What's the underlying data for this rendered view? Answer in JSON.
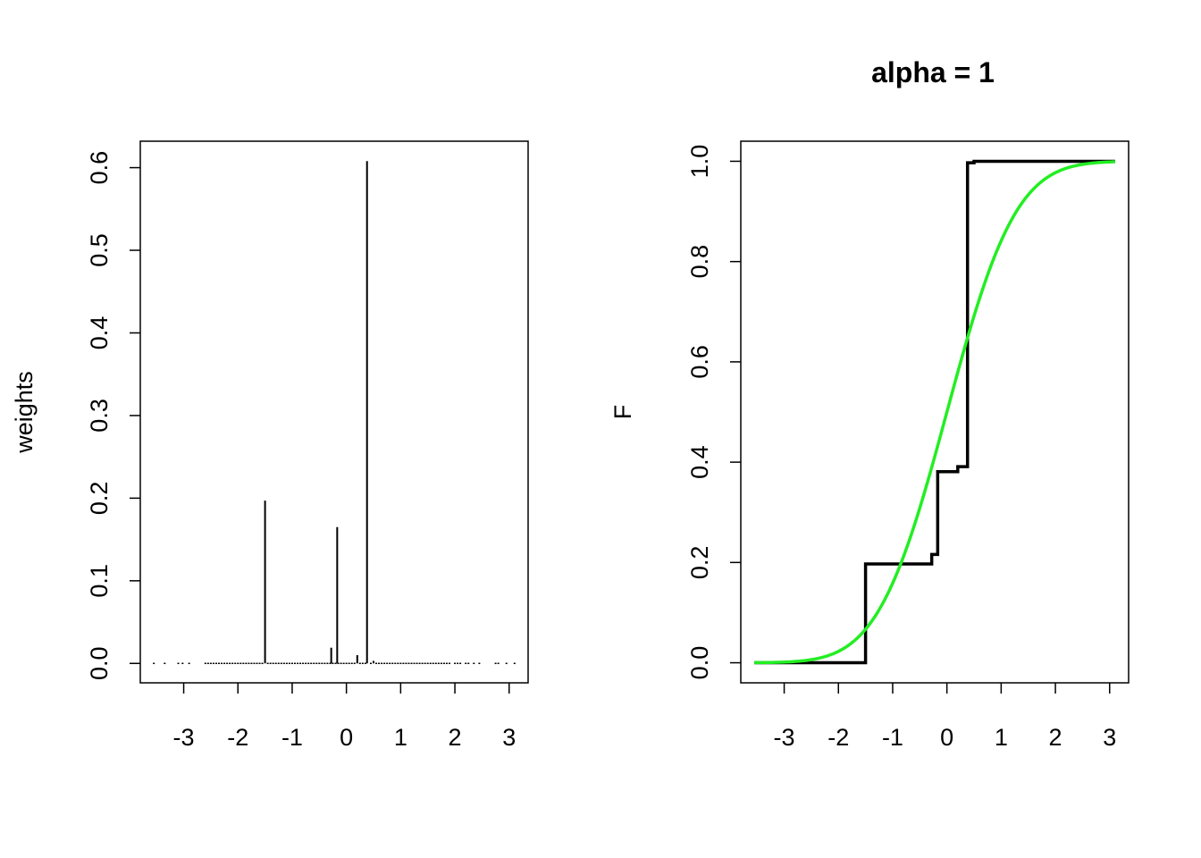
{
  "chart_data": [
    {
      "type": "bar",
      "title": "",
      "xlabel": "",
      "ylabel": "weights",
      "xlim": [
        -3.8,
        3.35
      ],
      "ylim": [
        -0.0235,
        0.632
      ],
      "xticks": [
        "-3",
        "-2",
        "-1",
        "0",
        "1",
        "2",
        "3"
      ],
      "yticks": [
        "0.0",
        "0.1",
        "0.2",
        "0.3",
        "0.4",
        "0.5",
        "0.6"
      ],
      "spikes": [
        {
          "x": -1.5,
          "y": 0.197
        },
        {
          "x": -0.28,
          "y": 0.019
        },
        {
          "x": -0.17,
          "y": 0.165
        },
        {
          "x": 0.2,
          "y": 0.01
        },
        {
          "x": 0.38,
          "y": 0.608
        },
        {
          "x": 0.5,
          "y": 0.003
        }
      ],
      "points_y": 0.0,
      "points_x": [
        -3.55,
        -3.35,
        -3.1,
        -3.02,
        -2.9,
        -2.6,
        -2.55,
        -2.5,
        -2.45,
        -2.4,
        -2.35,
        -2.3,
        -2.25,
        -2.2,
        -2.15,
        -2.1,
        -2.05,
        -2.0,
        -1.95,
        -1.9,
        -1.85,
        -1.8,
        -1.75,
        -1.7,
        -1.65,
        -1.6,
        -1.55,
        -1.45,
        -1.4,
        -1.35,
        -1.3,
        -1.25,
        -1.2,
        -1.15,
        -1.1,
        -1.05,
        -1.0,
        -0.95,
        -0.9,
        -0.85,
        -0.8,
        -0.75,
        -0.7,
        -0.65,
        -0.6,
        -0.55,
        -0.5,
        -0.45,
        -0.4,
        -0.35,
        -0.3,
        -0.25,
        -0.2,
        -0.15,
        -0.1,
        -0.05,
        0.0,
        0.05,
        0.1,
        0.15,
        0.25,
        0.3,
        0.35,
        0.45,
        0.55,
        0.6,
        0.65,
        0.7,
        0.75,
        0.8,
        0.85,
        0.9,
        0.95,
        1.0,
        1.05,
        1.1,
        1.15,
        1.2,
        1.25,
        1.3,
        1.35,
        1.4,
        1.45,
        1.5,
        1.55,
        1.6,
        1.65,
        1.7,
        1.75,
        1.8,
        1.85,
        1.9,
        2.0,
        2.05,
        2.1,
        2.2,
        2.25,
        2.35,
        2.45,
        2.75,
        2.8,
        2.95,
        3.1
      ]
    },
    {
      "type": "line",
      "title": "alpha = 1",
      "xlabel": "",
      "ylabel": "F",
      "xlim": [
        -3.8,
        3.35
      ],
      "ylim": [
        -0.04,
        1.04
      ],
      "xticks": [
        "-3",
        "-2",
        "-1",
        "0",
        "1",
        "2",
        "3"
      ],
      "yticks": [
        "0.0",
        "0.2",
        "0.4",
        "0.6",
        "0.8",
        "1.0"
      ],
      "series": [
        {
          "color": "#000000",
          "step": true,
          "x": [
            -3.55,
            -1.5,
            -1.5,
            -0.28,
            -0.28,
            -0.17,
            -0.17,
            0.2,
            0.2,
            0.38,
            0.38,
            0.5,
            0.5,
            3.1
          ],
          "y": [
            0.0,
            0.0,
            0.197,
            0.197,
            0.216,
            0.216,
            0.381,
            0.381,
            0.391,
            0.391,
            0.997,
            0.997,
            1.0,
            1.0
          ]
        },
        {
          "color": "#22ee22",
          "type": "normal-cdf",
          "x_range": [
            -3.55,
            3.1
          ],
          "mean": 0,
          "sd": 1
        }
      ]
    }
  ]
}
